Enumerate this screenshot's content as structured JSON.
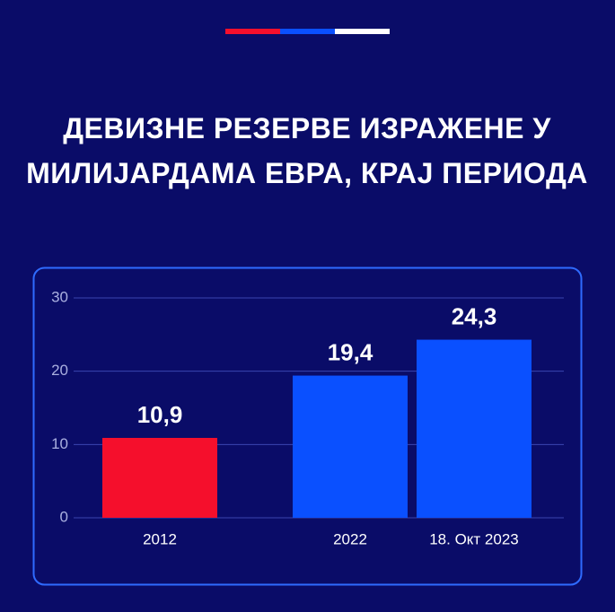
{
  "chart_data": {
    "type": "bar",
    "title": "ДЕВИЗНЕ РЕЗЕРВЕ ИЗРАЖЕНЕ У МИЛИЈАРДАМА ЕВРА, КРАЈ ПЕРИОДА",
    "categories": [
      "2012",
      "2022",
      "18. Окт 2023"
    ],
    "values": [
      10.9,
      19.4,
      24.3
    ],
    "value_labels": [
      "10,9",
      "19,4",
      "24,3"
    ],
    "colors": [
      "#f50f2c",
      "#0a50ff",
      "#0a50ff"
    ],
    "ylim": [
      0,
      30
    ],
    "yticks": [
      0,
      10,
      20,
      30
    ],
    "grid": true
  }
}
